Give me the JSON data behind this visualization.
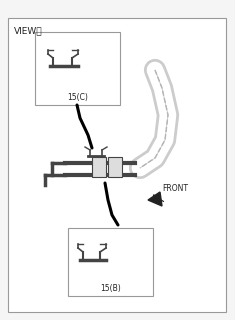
{
  "bg_color": "#f5f5f5",
  "border_color": "#999999",
  "title_text": "VIEWⓔ",
  "front_label": "FRONT",
  "label_c": "15(C)",
  "label_b": "15(B)",
  "line_color": "#222222",
  "detail_color": "#444444",
  "pipe_color": "#aaaaaa",
  "font_size_title": 6.5,
  "font_size_label": 5.5,
  "font_size_front": 5.5
}
